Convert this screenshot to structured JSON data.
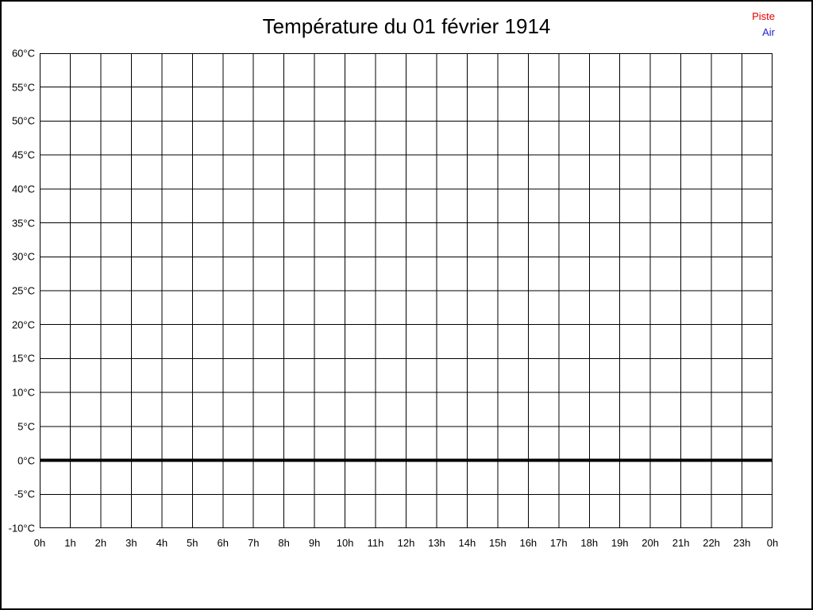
{
  "page": {
    "title": "Température du 01 février 1914"
  },
  "legend": {
    "items": [
      {
        "label": "Piste",
        "color": "#e60000"
      },
      {
        "label": "Air",
        "color": "#2222cc"
      }
    ]
  },
  "chart_data": {
    "type": "line",
    "title": "Température du 01 février 1914",
    "xlabel": "",
    "ylabel": "",
    "x_tick_labels": [
      "0h",
      "1h",
      "2h",
      "3h",
      "4h",
      "5h",
      "6h",
      "7h",
      "8h",
      "9h",
      "10h",
      "11h",
      "12h",
      "13h",
      "14h",
      "15h",
      "16h",
      "17h",
      "18h",
      "19h",
      "20h",
      "21h",
      "22h",
      "23h",
      "0h"
    ],
    "y_tick_labels": [
      "60°C",
      "55°C",
      "50°C",
      "45°C",
      "40°C",
      "35°C",
      "30°C",
      "25°C",
      "20°C",
      "15°C",
      "10°C",
      "5°C",
      "0°C",
      "-5°C",
      "-10°C"
    ],
    "ylim": [
      -10,
      60
    ],
    "y_step": 5,
    "xlim_hours": [
      0,
      24
    ],
    "grid": true,
    "grid_color": "#000000",
    "emphasized_y_value": 0,
    "legend_position": "top-right",
    "series": [
      {
        "name": "Piste",
        "color": "#e60000",
        "values": []
      },
      {
        "name": "Air",
        "color": "#2222cc",
        "values": []
      }
    ]
  }
}
